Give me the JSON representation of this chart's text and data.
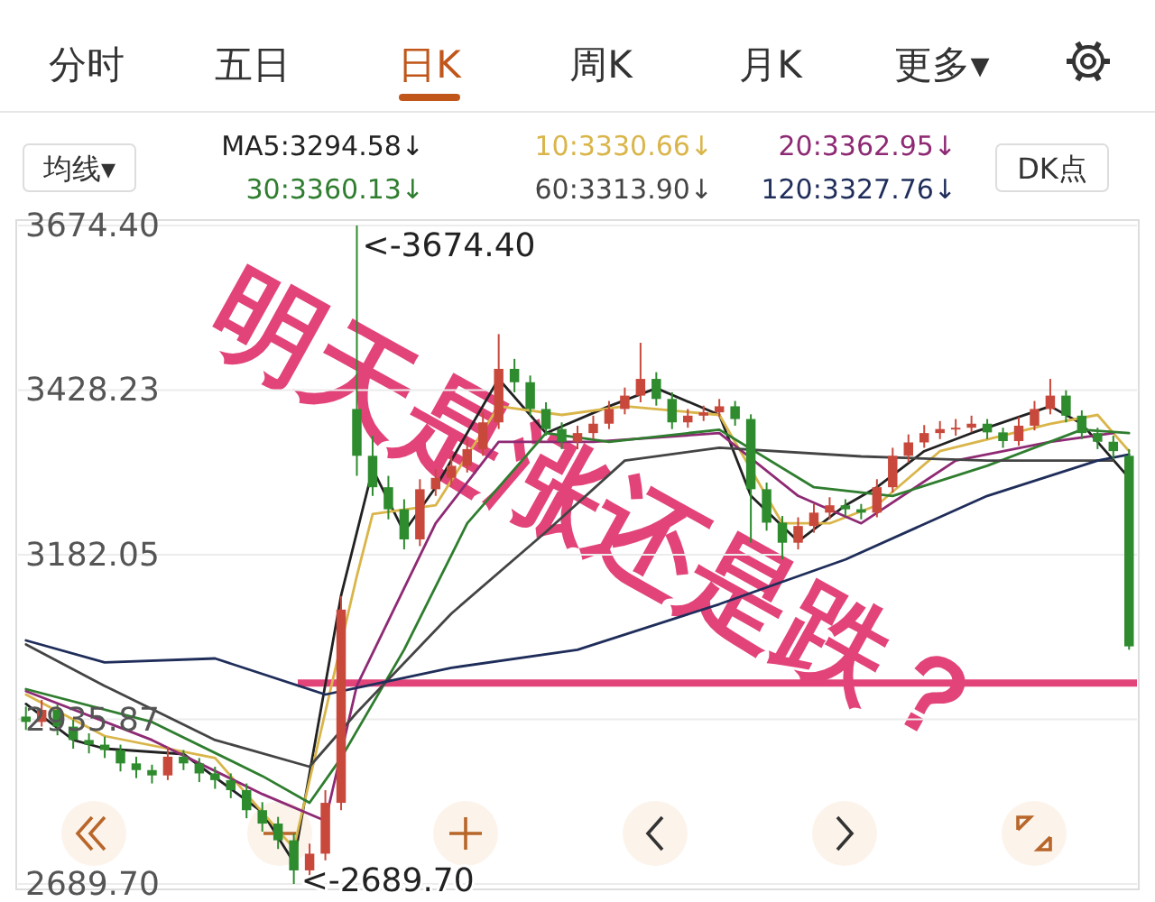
{
  "chart_data": {
    "type": "candlestick",
    "categories": [
      null,
      null,
      null,
      null,
      null,
      null,
      null,
      null,
      null,
      null,
      null,
      null,
      null,
      null,
      null,
      null,
      null,
      null,
      null,
      null,
      null,
      null,
      null,
      null,
      null,
      null,
      null,
      null,
      null,
      null,
      null,
      null,
      null,
      null,
      null,
      null,
      null,
      null,
      null,
      null,
      null,
      null,
      null,
      null,
      null,
      null,
      null,
      null,
      null,
      null,
      null,
      null,
      null,
      null,
      null,
      null,
      null,
      null,
      null,
      null,
      null,
      null,
      null,
      null,
      null,
      null,
      null,
      null,
      null,
      null,
      null
    ],
    "ohlc": [
      [
        2940,
        2955,
        2920,
        2932
      ],
      [
        2932,
        2965,
        2925,
        2950
      ],
      [
        2950,
        2958,
        2912,
        2925
      ],
      [
        2925,
        2935,
        2892,
        2905
      ],
      [
        2905,
        2915,
        2885,
        2898
      ],
      [
        2898,
        2910,
        2878,
        2890
      ],
      [
        2890,
        2898,
        2858,
        2870
      ],
      [
        2870,
        2880,
        2848,
        2860
      ],
      [
        2860,
        2868,
        2840,
        2852
      ],
      [
        2852,
        2895,
        2845,
        2880
      ],
      [
        2880,
        2890,
        2860,
        2870
      ],
      [
        2870,
        2878,
        2842,
        2855
      ],
      [
        2855,
        2865,
        2832,
        2845
      ],
      [
        2845,
        2855,
        2818,
        2830
      ],
      [
        2830,
        2840,
        2788,
        2800
      ],
      [
        2800,
        2812,
        2768,
        2780
      ],
      [
        2780,
        2790,
        2742,
        2755
      ],
      [
        2755,
        2765,
        2689.7,
        2710
      ],
      [
        2710,
        2750,
        2700,
        2735
      ],
      [
        2735,
        2830,
        2725,
        2811
      ],
      [
        2811,
        3120,
        2800,
        3100
      ],
      [
        3400,
        3674.4,
        3300,
        3330
      ],
      [
        3330,
        3360,
        3270,
        3283
      ],
      [
        3283,
        3300,
        3235,
        3250
      ],
      [
        3250,
        3265,
        3190,
        3205
      ],
      [
        3205,
        3295,
        3195,
        3280
      ],
      [
        3280,
        3310,
        3270,
        3297
      ],
      [
        3297,
        3330,
        3285,
        3315
      ],
      [
        3315,
        3355,
        3305,
        3340
      ],
      [
        3340,
        3395,
        3330,
        3380
      ],
      [
        3380,
        3512,
        3370,
        3460
      ],
      [
        3460,
        3475,
        3425,
        3440
      ],
      [
        3440,
        3450,
        3390,
        3400
      ],
      [
        3400,
        3410,
        3360,
        3370
      ],
      [
        3370,
        3380,
        3340,
        3351
      ],
      [
        3351,
        3375,
        3340,
        3364
      ],
      [
        3364,
        3390,
        3355,
        3378
      ],
      [
        3378,
        3412,
        3370,
        3400
      ],
      [
        3400,
        3432,
        3392,
        3420
      ],
      [
        3420,
        3499,
        3410,
        3445
      ],
      [
        3445,
        3455,
        3405,
        3415
      ],
      [
        3415,
        3425,
        3370,
        3380
      ],
      [
        3380,
        3400,
        3372,
        3390
      ],
      [
        3390,
        3405,
        3382,
        3395
      ],
      [
        3395,
        3415,
        3388,
        3404
      ],
      [
        3404,
        3412,
        3375,
        3385
      ],
      [
        3385,
        3392,
        3200,
        3280
      ],
      [
        3280,
        3290,
        3218,
        3230
      ],
      [
        3230,
        3240,
        3175,
        3200
      ],
      [
        3200,
        3238,
        3190,
        3225
      ],
      [
        3225,
        3258,
        3215,
        3245
      ],
      [
        3245,
        3268,
        3235,
        3256
      ],
      [
        3256,
        3265,
        3240,
        3250
      ],
      [
        3250,
        3258,
        3235,
        3245
      ],
      [
        3245,
        3295,
        3238,
        3283
      ],
      [
        3283,
        3342,
        3275,
        3330
      ],
      [
        3330,
        3362,
        3320,
        3350
      ],
      [
        3350,
        3376,
        3342,
        3364
      ],
      [
        3364,
        3382,
        3355,
        3370
      ],
      [
        3370,
        3385,
        3360,
        3372
      ],
      [
        3372,
        3390,
        3365,
        3378
      ],
      [
        3378,
        3385,
        3355,
        3365
      ],
      [
        3365,
        3372,
        3342,
        3352
      ],
      [
        3352,
        3388,
        3345,
        3375
      ],
      [
        3375,
        3412,
        3368,
        3400
      ],
      [
        3400,
        3445,
        3392,
        3420
      ],
      [
        3420,
        3428,
        3380,
        3390
      ],
      [
        3390,
        3398,
        3355,
        3364
      ],
      [
        3364,
        3372,
        3340,
        3351
      ],
      [
        3351,
        3360,
        3325,
        3337
      ],
      [
        3330,
        3340,
        3040,
        3045
      ]
    ],
    "series": [
      {
        "name": "MA5:3294.58↓",
        "color": "#222222",
        "type": "line",
        "values": [
          2959,
          null,
          null,
          2905,
          null,
          2892,
          null,
          null,
          null,
          null,
          2884,
          null,
          null,
          null,
          null,
          2797,
          null,
          2722,
          null,
          null,
          3121,
          null,
          3310,
          null,
          3216,
          null,
          3283,
          null,
          null,
          null,
          3445,
          null,
          null,
          3364,
          null,
          null,
          null,
          3404,
          null,
          null,
          3431,
          null,
          null,
          null,
          3391,
          null,
          3270,
          null,
          null,
          3202,
          null,
          null,
          3256,
          null,
          3283,
          null,
          null,
          3337,
          null,
          null,
          3364,
          null,
          null,
          null,
          null,
          3404,
          null,
          3378,
          null,
          null,
          3297
        ]
      },
      {
        "name": "10:3330.66↓",
        "color": "#d9b54a",
        "type": "line",
        "values": [
          2973,
          null,
          null,
          null,
          null,
          2911,
          null,
          null,
          null,
          null,
          null,
          null,
          2878,
          null,
          null,
          null,
          null,
          2743,
          null,
          null,
          null,
          3150,
          3243,
          null,
          null,
          null,
          3256,
          null,
          null,
          null,
          3404,
          null,
          null,
          null,
          3391,
          null,
          null,
          null,
          3404,
          null,
          null,
          null,
          null,
          null,
          3391,
          null,
          null,
          null,
          3229,
          null,
          null,
          3229,
          null,
          null,
          3256,
          null,
          null,
          null,
          3337,
          null,
          null,
          null,
          null,
          null,
          null,
          3378,
          null,
          null,
          3391,
          null,
          3337
        ]
      },
      {
        "name": "20:3362.95↓",
        "color": "#8e2a74",
        "type": "line",
        "values": [
          2978,
          null,
          null,
          null,
          null,
          null,
          null,
          null,
          2905,
          null,
          null,
          null,
          null,
          null,
          null,
          2824,
          null,
          null,
          null,
          2784,
          null,
          2986,
          null,
          null,
          null,
          null,
          3229,
          null,
          null,
          null,
          3351,
          null,
          null,
          null,
          null,
          null,
          3351,
          null,
          null,
          null,
          null,
          null,
          null,
          null,
          3364,
          null,
          null,
          null,
          null,
          3270,
          null,
          null,
          null,
          3229,
          null,
          null,
          null,
          null,
          null,
          3323,
          null,
          null,
          null,
          null,
          null,
          3351,
          null,
          null,
          null,
          3364,
          null
        ]
      },
      {
        "name": "30:3360.13↓",
        "color": "#2f7d2f",
        "type": "line",
        "values": [
          2981,
          null,
          null,
          null,
          null,
          null,
          null,
          null,
          2932,
          null,
          null,
          null,
          null,
          null,
          null,
          2851,
          null,
          null,
          2811,
          null,
          2878,
          null,
          null,
          null,
          3040,
          null,
          null,
          null,
          3229,
          null,
          null,
          null,
          null,
          3364,
          null,
          null,
          null,
          3351,
          null,
          null,
          null,
          null,
          null,
          null,
          3369,
          null,
          null,
          null,
          null,
          null,
          3283,
          null,
          null,
          null,
          null,
          3270,
          null,
          null,
          null,
          null,
          null,
          3315,
          null,
          null,
          null,
          null,
          null,
          3369,
          null,
          null,
          3364
        ]
      },
      {
        "name": "60:3313.90↓",
        "color": "#444444",
        "type": "line",
        "values": [
          3048,
          null,
          null,
          null,
          null,
          2986,
          null,
          null,
          null,
          null,
          null,
          null,
          2905,
          null,
          null,
          null,
          null,
          null,
          2865,
          null,
          null,
          2946,
          null,
          null,
          null,
          null,
          null,
          3094,
          null,
          null,
          null,
          null,
          null,
          3216,
          null,
          null,
          null,
          null,
          3323,
          null,
          null,
          null,
          null,
          null,
          3342,
          null,
          null,
          null,
          null,
          null,
          null,
          null,
          null,
          3329,
          null,
          null,
          null,
          null,
          null,
          null,
          null,
          3323,
          null,
          null,
          null,
          null,
          null,
          null,
          null,
          3323,
          null
        ]
      },
      {
        "name": "120:3327.76↓",
        "color": "#1f2d5a",
        "type": "line",
        "values": [
          3054,
          null,
          null,
          null,
          null,
          3021,
          null,
          null,
          null,
          null,
          null,
          null,
          3027,
          null,
          null,
          null,
          null,
          null,
          null,
          2973,
          null,
          null,
          null,
          null,
          null,
          null,
          null,
          3013,
          null,
          null,
          null,
          null,
          null,
          null,
          null,
          3040,
          null,
          null,
          null,
          null,
          null,
          null,
          null,
          null,
          3108,
          null,
          null,
          null,
          null,
          null,
          null,
          null,
          3175,
          null,
          null,
          null,
          null,
          null,
          null,
          null,
          null,
          3270,
          null,
          null,
          null,
          null,
          null,
          null,
          3323,
          null,
          3332
        ]
      }
    ],
    "ylim": [
      2689.7,
      3674.4
    ],
    "yticks": [
      {
        "value": 3674.4,
        "label": "3674.40"
      },
      {
        "value": 3428.23,
        "label": "3428.23"
      },
      {
        "value": 3182.05,
        "label": "3182.05"
      },
      {
        "value": 2935.87,
        "label": "2935.87"
      },
      {
        "value": 2689.7,
        "label": "2689.70"
      }
    ],
    "grid": "y",
    "legend": "top",
    "ref_lines": [
      {
        "axis": "y",
        "value": 2990,
        "color": "#e2447a"
      }
    ],
    "annotations": [
      "分时",
      "五日",
      "日K",
      "周K",
      "月K",
      "更多▾",
      "均线▾",
      "DK点",
      "明天是涨还是跌？",
      "<-3674.40",
      "<-2689.70"
    ]
  }
}
